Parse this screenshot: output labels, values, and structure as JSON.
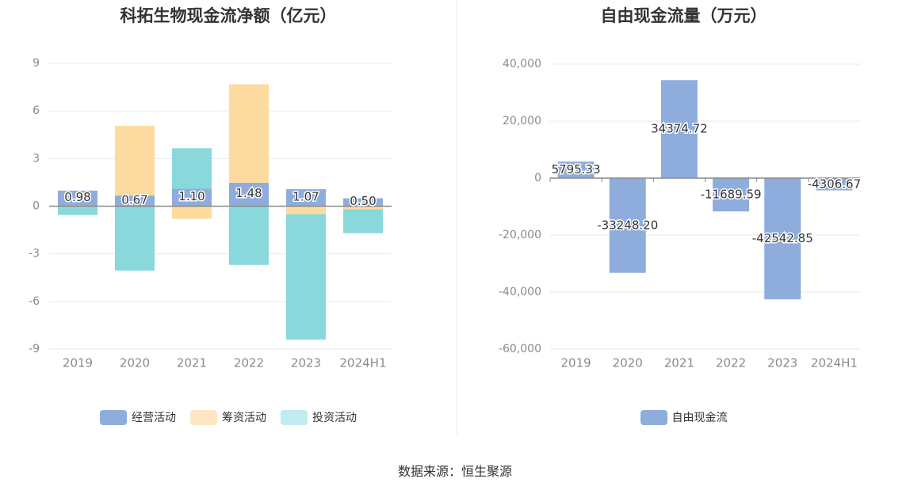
{
  "colors": {
    "operating": "#8eaddc",
    "financing": "#fddba0",
    "investing": "#88d8dc",
    "fcf": "#8eaddc",
    "grid": "#e6e9f2",
    "axis_text": "#8a8a8a"
  },
  "source": "数据来源：恒生聚源",
  "chart_data": [
    {
      "type": "bar",
      "stacked": true,
      "title": "科拓生物现金流净额（亿元）",
      "categories": [
        "2019",
        "2020",
        "2021",
        "2022",
        "2023",
        "2024H1"
      ],
      "ylim": [
        -9,
        9
      ],
      "yticks": [
        9,
        6,
        3,
        0,
        -3,
        -6,
        -9
      ],
      "grid": true,
      "legend_position": "bottom",
      "series": [
        {
          "name": "经营活动",
          "values": [
            0.98,
            0.67,
            1.1,
            1.48,
            1.07,
            0.5
          ],
          "labels": [
            "0.98",
            "0.67",
            "1.10",
            "1.48",
            "1.07",
            "0.50"
          ]
        },
        {
          "name": "筹资活动",
          "values": [
            -0.05,
            4.4,
            -0.8,
            6.2,
            -0.5,
            -0.2
          ]
        },
        {
          "name": "投资活动",
          "values": [
            -0.5,
            -4.05,
            2.55,
            -3.7,
            -7.9,
            -1.5
          ]
        }
      ]
    },
    {
      "type": "bar",
      "title": "自由现金流量（万元）",
      "categories": [
        "2019",
        "2020",
        "2021",
        "2022",
        "2023",
        "2024H1"
      ],
      "ylim": [
        -60000,
        40000
      ],
      "yticks": [
        40000,
        20000,
        0,
        -20000,
        -40000,
        -60000
      ],
      "ytick_labels": [
        "40,000",
        "20,000",
        "0",
        "-20,000",
        "-40,000",
        "-60,000"
      ],
      "grid": true,
      "legend_position": "bottom",
      "series": [
        {
          "name": "自由现金流",
          "values": [
            5795.33,
            -33248.2,
            34374.72,
            -11689.59,
            -42542.85,
            -4306.67
          ],
          "labels": [
            "5795.33",
            "-33248.20",
            "34374.72",
            "-11689.59",
            "-42542.85",
            "-4306.67"
          ]
        }
      ]
    }
  ]
}
